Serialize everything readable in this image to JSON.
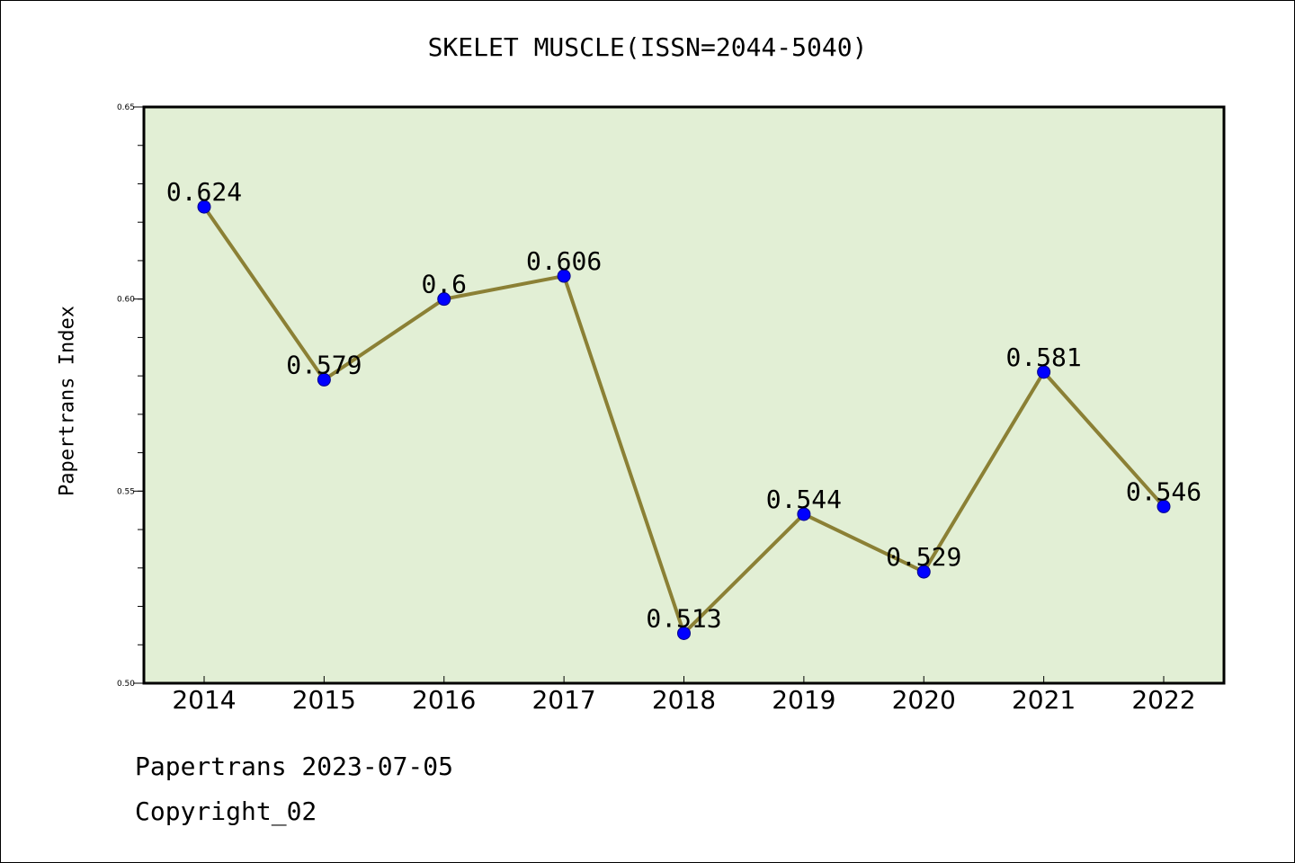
{
  "chart_data": {
    "type": "line",
    "title": "SKELET MUSCLE(ISSN=2044-5040)",
    "xlabel": "",
    "ylabel": "Papertrans Index",
    "categories": [
      "2014",
      "2015",
      "2016",
      "2017",
      "2018",
      "2019",
      "2020",
      "2021",
      "2022"
    ],
    "values": [
      0.624,
      0.579,
      0.6,
      0.606,
      0.513,
      0.544,
      0.529,
      0.581,
      0.546
    ],
    "data_labels": [
      "0.624",
      "0.579",
      "0.6",
      "0.606",
      "0.513",
      "0.544",
      "0.529",
      "0.581",
      "0.546"
    ],
    "ylim": [
      0.5,
      0.65
    ],
    "yticks": [
      0.5,
      0.55,
      0.6,
      0.65
    ],
    "ytick_labels": [
      "0.50",
      "0.55",
      "0.60",
      "0.65"
    ],
    "grid": false,
    "legend": "none"
  },
  "footer": {
    "date_line": "Papertrans 2023-07-05",
    "copyright_line": "Copyright_02"
  },
  "colors": {
    "plot_background": "#e2efd5",
    "line": "#8b8035",
    "marker": "#0000ff",
    "marker_edge": "#00008b",
    "axis": "#000000"
  }
}
